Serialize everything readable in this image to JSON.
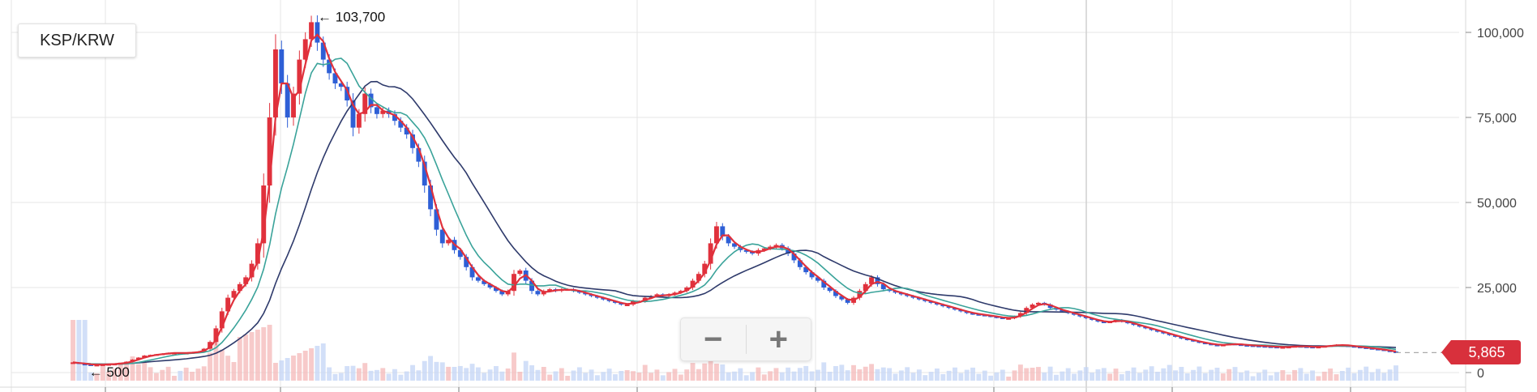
{
  "pair_label": "KSP/KRW",
  "zoom": {
    "minus": "−",
    "plus": "+"
  },
  "current_price": "5,865",
  "colors": {
    "up": "#e0313c",
    "down": "#2e5fd6",
    "ma_short": "#e0313c",
    "ma_mid": "#3aa39a",
    "ma_long": "#2e3a6b",
    "grid": "#e6e6e6",
    "price_tag": "#d8303c"
  },
  "chart_data": {
    "type": "candlestick",
    "y_axis": {
      "min": 0,
      "max": 105000,
      "ticks": [
        0,
        25000,
        50000,
        75000,
        100000
      ],
      "tick_labels": [
        "0",
        "25,000",
        "50,000",
        "75,000",
        "100,000"
      ],
      "position": "right"
    },
    "annotations": [
      {
        "label": "← 103,700",
        "value": 103700,
        "index": 40
      },
      {
        "label": "← 500",
        "value": 500,
        "index": 2
      }
    ],
    "last_price": 5865,
    "grid": true,
    "series_close": [
      3000,
      2600,
      2400,
      2300,
      2300,
      2400,
      2500,
      2600,
      2800,
      3200,
      3800,
      4400,
      5000,
      5200,
      5400,
      5600,
      5800,
      5800,
      5700,
      5800,
      6000,
      6200,
      7000,
      9000,
      13000,
      18000,
      22000,
      24000,
      26000,
      28000,
      32000,
      38000,
      55000,
      75000,
      95000,
      85000,
      75000,
      82000,
      92000,
      98000,
      103000,
      97000,
      92000,
      88000,
      85000,
      84000,
      80000,
      72000,
      76000,
      82000,
      78000,
      76000,
      77000,
      76000,
      74000,
      72000,
      70000,
      66000,
      62000,
      55000,
      48000,
      42000,
      38000,
      39000,
      36000,
      34000,
      31000,
      28000,
      27000,
      26000,
      25000,
      24000,
      23000,
      24000,
      29000,
      30000,
      27000,
      24000,
      23000,
      24000,
      24500,
      24000,
      24500,
      24500,
      24000,
      23500,
      23000,
      22500,
      22000,
      21500,
      21000,
      20500,
      20000,
      20000,
      21000,
      21000,
      22000,
      22500,
      23000,
      22500,
      23000,
      23500,
      24000,
      25000,
      27000,
      29000,
      32000,
      38000,
      43000,
      40000,
      38000,
      37000,
      36000,
      35500,
      35000,
      36000,
      36500,
      37000,
      37500,
      36500,
      35000,
      33000,
      31000,
      29500,
      28000,
      27000,
      25000,
      24000,
      22500,
      21500,
      20500,
      22000,
      24000,
      26000,
      28000,
      26000,
      24500,
      24000,
      23500,
      23000,
      22500,
      22000,
      21500,
      21000,
      20500,
      20000,
      19500,
      19000,
      18500,
      18000,
      17500,
      17200,
      17000,
      16800,
      16500,
      16200,
      16000,
      16000,
      16500,
      17500,
      19000,
      20000,
      20500,
      20000,
      19000,
      18500,
      18000,
      17500,
      17000,
      16500,
      16000,
      15500,
      15000,
      14800,
      15000,
      15500,
      15000,
      14500,
      14000,
      13500,
      13000,
      12500,
      12000,
      11500,
      11000,
      10500,
      10000,
      9600,
      9200,
      8800,
      8500,
      8200,
      8000,
      8200,
      8500,
      8300,
      8100,
      8000,
      7900,
      7800,
      7700,
      7600,
      7500,
      7500,
      7600,
      7800,
      7700,
      7600,
      7500,
      7600,
      7800,
      8000,
      8200,
      8000,
      7800,
      7600,
      7400,
      7200,
      7000,
      6800,
      6500,
      6200,
      5865
    ]
  }
}
